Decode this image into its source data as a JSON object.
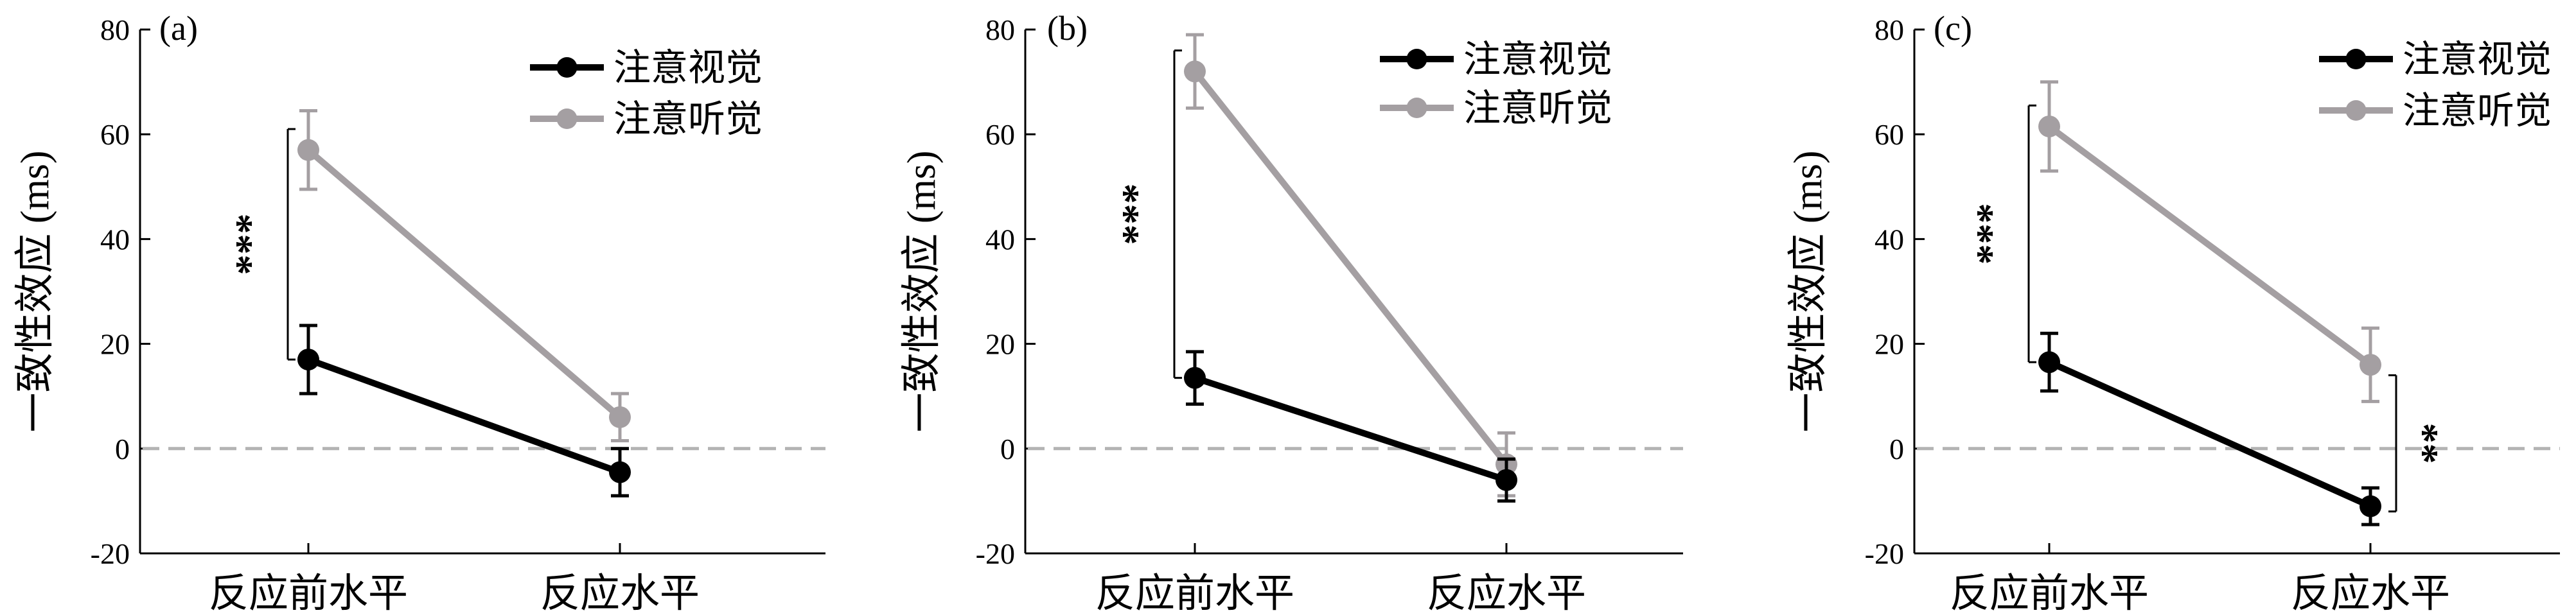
{
  "chart_data": [
    {
      "type": "line",
      "panel_label": "(a)",
      "categories": [
        "反应前水平",
        "反应水平"
      ],
      "ylabel": "一致性效应 (ms)",
      "ylim": [
        -20,
        80
      ],
      "yticks": [
        -20,
        0,
        20,
        40,
        60,
        80
      ],
      "reference_line": 0,
      "legend_position": "top-right",
      "series": [
        {
          "name": "注意视觉",
          "color": "#000000",
          "values": [
            17,
            -4.5
          ],
          "error": [
            6.5,
            4.5
          ]
        },
        {
          "name": "注意听觉",
          "color": "#a49fa2",
          "values": [
            57,
            6
          ],
          "error": [
            7.5,
            4.5
          ]
        }
      ],
      "significance": [
        {
          "category_index": 0,
          "label": "***"
        }
      ]
    },
    {
      "type": "line",
      "panel_label": "(b)",
      "categories": [
        "反应前水平",
        "反应水平"
      ],
      "ylabel": "一致性效应 (ms)",
      "ylim": [
        -20,
        80
      ],
      "yticks": [
        -20,
        0,
        20,
        40,
        60,
        80
      ],
      "reference_line": 0,
      "legend_position": "top-right",
      "series": [
        {
          "name": "注意视觉",
          "color": "#000000",
          "values": [
            13.5,
            -6
          ],
          "error": [
            5,
            4
          ]
        },
        {
          "name": "注意听觉",
          "color": "#a49fa2",
          "values": [
            72,
            -3
          ],
          "error": [
            7,
            6
          ]
        }
      ],
      "significance": [
        {
          "category_index": 0,
          "label": "***"
        }
      ]
    },
    {
      "type": "line",
      "panel_label": "(c)",
      "categories": [
        "反应前水平",
        "反应水平"
      ],
      "ylabel": "一致性效应 (ms)",
      "ylim": [
        -20,
        80
      ],
      "yticks": [
        -20,
        0,
        20,
        40,
        60,
        80
      ],
      "reference_line": 0,
      "legend_position": "top-right",
      "series": [
        {
          "name": "注意视觉",
          "color": "#000000",
          "values": [
            16.5,
            -11
          ],
          "error": [
            5.5,
            3.5
          ]
        },
        {
          "name": "注意听觉",
          "color": "#a49fa2",
          "values": [
            61.5,
            16
          ],
          "error": [
            8.5,
            7
          ]
        }
      ],
      "significance": [
        {
          "category_index": 0,
          "label": "***"
        },
        {
          "category_index": 1,
          "label": "**"
        }
      ]
    }
  ]
}
